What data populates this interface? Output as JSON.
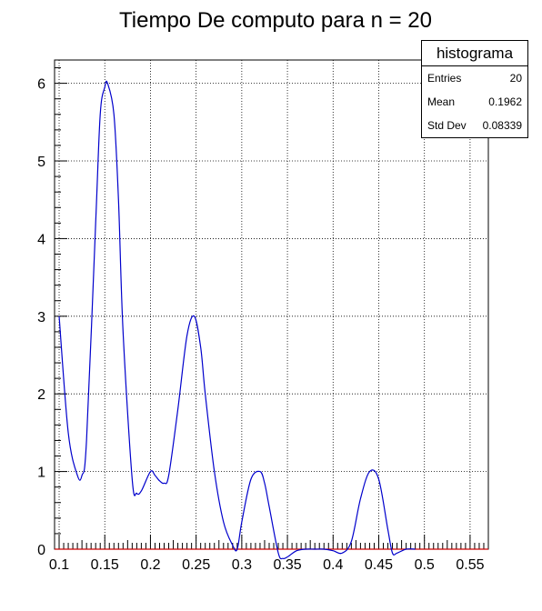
{
  "chart_data": {
    "type": "line",
    "title": "Tiempo De computo para n = 20",
    "xlabel": "",
    "ylabel": "",
    "xlim": [
      0.095,
      0.57
    ],
    "ylim": [
      0,
      6.3
    ],
    "xticks": [
      0.1,
      0.15,
      0.2,
      0.25,
      0.3,
      0.35,
      0.4,
      0.45,
      0.5,
      0.55
    ],
    "xtick_labels": [
      "0.1",
      "0.15",
      "0.2",
      "0.25",
      "0.3",
      "0.35",
      "0.4",
      "0.45",
      "0.5",
      "0.55"
    ],
    "yticks": [
      0,
      1,
      2,
      3,
      4,
      5,
      6
    ],
    "ytick_labels": [
      "0",
      "1",
      "2",
      "3",
      "4",
      "5",
      "6"
    ],
    "grid": true,
    "series": [
      {
        "color": "#0000cc",
        "x": [
          0.1,
          0.11,
          0.12,
          0.125,
          0.13,
          0.14,
          0.145,
          0.15,
          0.153,
          0.16,
          0.165,
          0.17,
          0.18,
          0.185,
          0.19,
          0.2,
          0.205,
          0.21,
          0.215,
          0.22,
          0.23,
          0.24,
          0.248,
          0.255,
          0.26,
          0.27,
          0.28,
          0.29,
          0.295,
          0.3,
          0.31,
          0.32,
          0.325,
          0.33,
          0.34,
          0.345,
          0.35,
          0.36,
          0.37,
          0.38,
          0.39,
          0.4,
          0.41,
          0.42,
          0.43,
          0.44,
          0.45,
          0.46,
          0.465,
          0.47,
          0.48,
          0.49
        ],
        "y": [
          3.0,
          1.5,
          0.95,
          0.95,
          1.4,
          4.2,
          5.6,
          5.95,
          6.0,
          5.6,
          4.5,
          2.8,
          0.9,
          0.72,
          0.75,
          1.0,
          0.95,
          0.88,
          0.85,
          0.95,
          1.8,
          2.75,
          3.0,
          2.6,
          2.0,
          1.0,
          0.35,
          0.05,
          0.0,
          0.35,
          0.9,
          1.0,
          0.85,
          0.55,
          -0.05,
          -0.12,
          -0.1,
          -0.02,
          0.0,
          0.0,
          0.0,
          -0.02,
          -0.05,
          0.1,
          0.65,
          1.0,
          0.9,
          0.25,
          -0.05,
          -0.05,
          0.0,
          0.0
        ]
      }
    ]
  },
  "stats_box": {
    "title": "histograma",
    "rows": [
      {
        "label": "Entries",
        "value": "20"
      },
      {
        "label": "Mean",
        "value": "0.1962"
      },
      {
        "label": "Std Dev",
        "value": "0.08339"
      }
    ]
  }
}
